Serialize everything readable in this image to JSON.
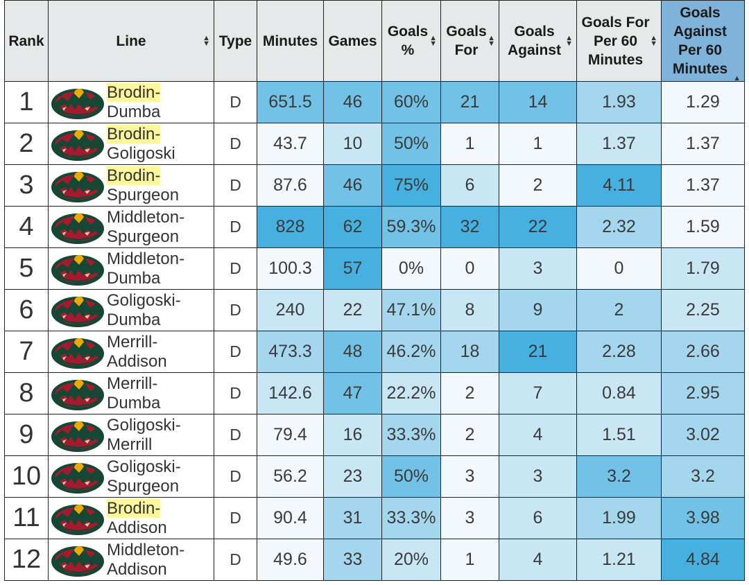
{
  "headers": {
    "rank": "Rank",
    "line": "Line",
    "type": "Type",
    "minutes": "Minutes",
    "games": "Games",
    "goals_pct": "Goals %",
    "goals_for": "Goals For",
    "goals_against": "Goals Against",
    "gf60": "Goals For Per 60 Minutes",
    "ga60": "Goals Against Per 60 Minutes"
  },
  "sort_icons": {
    "sortable": "sort-both-icon",
    "sorted": "sort-ascending-icon"
  },
  "logo_icon": "minnesota-wild-logo",
  "colors": {
    "header_bg": "#e6e9ea",
    "sorted_header_bg": "#7fb3d9",
    "highlight": "#fbf79a",
    "scale": [
      "#f2f8fc",
      "#c9e6f4",
      "#a4d6ee",
      "#72c1e6",
      "#46b0e1"
    ]
  },
  "rows": [
    {
      "rank": "1",
      "p1": "Brodin-",
      "p2": "Dumba",
      "hl": true,
      "type": "D",
      "minutes": "651.5",
      "games": "46",
      "goals_pct": "60%",
      "goals_for": "21",
      "goals_against": "14",
      "gf60": "1.93",
      "ga60": "1.29"
    },
    {
      "rank": "2",
      "p1": "Brodin-",
      "p2": "Goligoski",
      "hl": true,
      "type": "D",
      "minutes": "43.7",
      "games": "10",
      "goals_pct": "50%",
      "goals_for": "1",
      "goals_against": "1",
      "gf60": "1.37",
      "ga60": "1.37"
    },
    {
      "rank": "3",
      "p1": "Brodin-",
      "p2": "Spurgeon",
      "hl": true,
      "type": "D",
      "minutes": "87.6",
      "games": "46",
      "goals_pct": "75%",
      "goals_for": "6",
      "goals_against": "2",
      "gf60": "4.11",
      "ga60": "1.37"
    },
    {
      "rank": "4",
      "p1": "Middleton-",
      "p2": "Spurgeon",
      "hl": false,
      "type": "D",
      "minutes": "828",
      "games": "62",
      "goals_pct": "59.3%",
      "goals_for": "32",
      "goals_against": "22",
      "gf60": "2.32",
      "ga60": "1.59"
    },
    {
      "rank": "5",
      "p1": "Middleton-",
      "p2": "Dumba",
      "hl": false,
      "type": "D",
      "minutes": "100.3",
      "games": "57",
      "goals_pct": "0%",
      "goals_for": "0",
      "goals_against": "3",
      "gf60": "0",
      "ga60": "1.79"
    },
    {
      "rank": "6",
      "p1": "Goligoski-",
      "p2": "Dumba",
      "hl": false,
      "type": "D",
      "minutes": "240",
      "games": "22",
      "goals_pct": "47.1%",
      "goals_for": "8",
      "goals_against": "9",
      "gf60": "2",
      "ga60": "2.25"
    },
    {
      "rank": "7",
      "p1": "Merrill-",
      "p2": "Addison",
      "hl": false,
      "type": "D",
      "minutes": "473.3",
      "games": "48",
      "goals_pct": "46.2%",
      "goals_for": "18",
      "goals_against": "21",
      "gf60": "2.28",
      "ga60": "2.66"
    },
    {
      "rank": "8",
      "p1": "Merrill-",
      "p2": "Dumba",
      "hl": false,
      "type": "D",
      "minutes": "142.6",
      "games": "47",
      "goals_pct": "22.2%",
      "goals_for": "2",
      "goals_against": "7",
      "gf60": "0.84",
      "ga60": "2.95"
    },
    {
      "rank": "9",
      "p1": "Goligoski-",
      "p2": "Merrill",
      "hl": false,
      "type": "D",
      "minutes": "79.4",
      "games": "16",
      "goals_pct": "33.3%",
      "goals_for": "2",
      "goals_against": "4",
      "gf60": "1.51",
      "ga60": "3.02"
    },
    {
      "rank": "10",
      "p1": "Goligoski-",
      "p2": "Spurgeon",
      "hl": false,
      "type": "D",
      "minutes": "56.2",
      "games": "23",
      "goals_pct": "50%",
      "goals_for": "3",
      "goals_against": "3",
      "gf60": "3.2",
      "ga60": "3.2"
    },
    {
      "rank": "11",
      "p1": "Brodin-",
      "p2": "Addison",
      "hl": true,
      "type": "D",
      "minutes": "90.4",
      "games": "31",
      "goals_pct": "33.3%",
      "goals_for": "3",
      "goals_against": "6",
      "gf60": "1.99",
      "ga60": "3.98"
    },
    {
      "rank": "12",
      "p1": "Middleton-",
      "p2": "Addison",
      "hl": false,
      "type": "D",
      "minutes": "49.6",
      "games": "33",
      "goals_pct": "20%",
      "goals_for": "1",
      "goals_against": "4",
      "gf60": "1.21",
      "ga60": "4.84"
    }
  ]
}
